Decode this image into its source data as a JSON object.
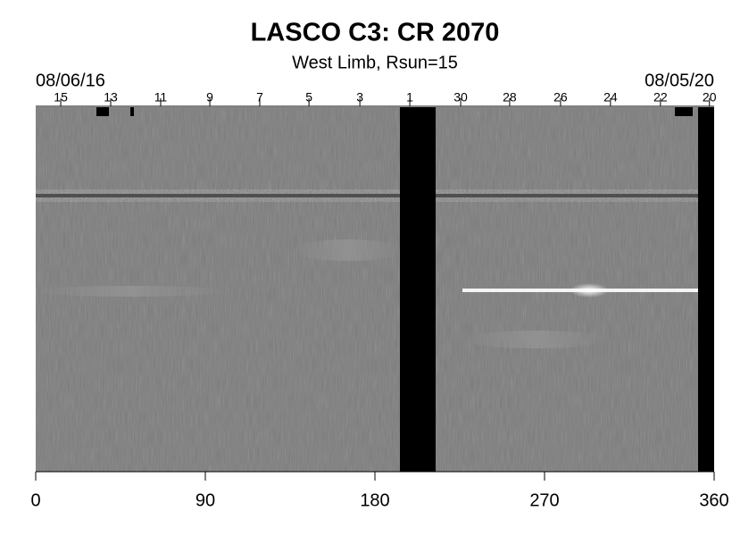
{
  "chart_data": {
    "type": "synoptic-map",
    "title": "LASCO C3: CR 2070",
    "subtitle": "West Limb, Rsun=15",
    "start_date": "08/06/16",
    "end_date": "08/05/20",
    "xlim": [
      0,
      360
    ],
    "xticks": [
      0,
      90,
      180,
      270,
      360
    ],
    "top_ticks": [
      {
        "value": 13.3,
        "label": "15"
      },
      {
        "value": 39.8,
        "label": "13"
      },
      {
        "value": 66.3,
        "label": "11"
      },
      {
        "value": 92.4,
        "label": "9"
      },
      {
        "value": 118.9,
        "label": "7"
      },
      {
        "value": 145,
        "label": "5"
      },
      {
        "value": 172,
        "label": "3"
      },
      {
        "value": 198.5,
        "label": "1"
      },
      {
        "value": 225.5,
        "label": "30"
      },
      {
        "value": 251.5,
        "label": "28"
      },
      {
        "value": 278.5,
        "label": "26"
      },
      {
        "value": 305,
        "label": "24"
      },
      {
        "value": 331.5,
        "label": "22"
      },
      {
        "value": 357.5,
        "label": "20"
      }
    ]
  }
}
